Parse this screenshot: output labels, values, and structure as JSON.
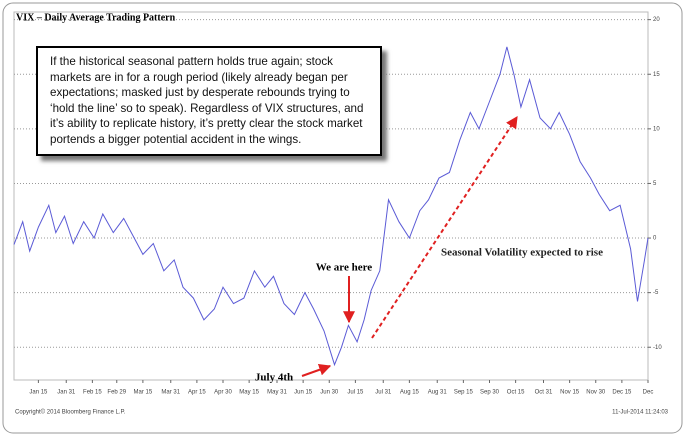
{
  "chart_data": {
    "type": "line",
    "title": "VIX – Daily Average Trading Pattern",
    "annotation_box": "If the historical seasonal pattern holds true again; stock markets are in for a rough period (likely already began per expectations; masked just by desperate rebounds trying to ‘hold the line’ so to speak). Regardless of VIX structures, and it’s ability to replicate history, it’s pretty clear the stock market portends a bigger potential accident in the wings.",
    "annotations": [
      "We are here",
      "July 4th",
      "Seasonal Volatility expected to rise"
    ],
    "footer_left": "Copyright© 2014 Bloomberg Finance L.P.",
    "footer_right": "11-Jul-2014 11:24:03",
    "yaxis_position": "right",
    "grid": true,
    "xlim": [
      1,
      365
    ],
    "ylim": [
      -13,
      20.7
    ],
    "yticks": [
      20,
      15,
      10,
      5,
      0,
      -5,
      -10
    ],
    "xticks": [
      {
        "value": 15,
        "label": "Jan 15"
      },
      {
        "value": 31,
        "label": "Jan 31"
      },
      {
        "value": 46,
        "label": "Feb 15"
      },
      {
        "value": 60,
        "label": "Feb 29"
      },
      {
        "value": 75,
        "label": "Mar 15"
      },
      {
        "value": 91,
        "label": "Mar 31"
      },
      {
        "value": 106,
        "label": "Apr 15"
      },
      {
        "value": 121,
        "label": "Apr 30"
      },
      {
        "value": 136,
        "label": "May 15"
      },
      {
        "value": 152,
        "label": "May 31"
      },
      {
        "value": 167,
        "label": "Jun 15"
      },
      {
        "value": 182,
        "label": "Jun 30"
      },
      {
        "value": 197,
        "label": "Jul 15"
      },
      {
        "value": 213,
        "label": "Jul 31"
      },
      {
        "value": 228,
        "label": "Aug 15"
      },
      {
        "value": 244,
        "label": "Aug 31"
      },
      {
        "value": 259,
        "label": "Sep 15"
      },
      {
        "value": 274,
        "label": "Sep 30"
      },
      {
        "value": 289,
        "label": "Oct 15"
      },
      {
        "value": 305,
        "label": "Oct 31"
      },
      {
        "value": 320,
        "label": "Nov 15"
      },
      {
        "value": 335,
        "label": "Nov 30"
      },
      {
        "value": 350,
        "label": "Dec 15"
      },
      {
        "value": 365,
        "label": "Dec"
      }
    ],
    "x": [
      1,
      6,
      10,
      15,
      21,
      25,
      30,
      35,
      41,
      47,
      52,
      58,
      64,
      70,
      75,
      81,
      87,
      93,
      98,
      104,
      110,
      116,
      121,
      127,
      133,
      139,
      145,
      150,
      156,
      162,
      168,
      173,
      179,
      185,
      189,
      193,
      198,
      202,
      206,
      211,
      216,
      222,
      228,
      234,
      239,
      245,
      251,
      257,
      263,
      268,
      274,
      280,
      284,
      288,
      292,
      297,
      303,
      309,
      314,
      320,
      326,
      332,
      337,
      343,
      349,
      355,
      359,
      363,
      365
    ],
    "series": [
      {
        "color": "#5b5bd6",
        "values": [
          -0.6,
          1.5,
          -1.2,
          1.0,
          3.0,
          0.5,
          2.0,
          -0.5,
          1.5,
          0.0,
          2.2,
          0.5,
          1.8,
          0.0,
          -1.5,
          -0.5,
          -3.0,
          -2.0,
          -4.5,
          -5.5,
          -7.5,
          -6.5,
          -4.5,
          -6.0,
          -5.5,
          -3.0,
          -4.5,
          -3.5,
          -6.0,
          -7.0,
          -5.0,
          -6.5,
          -8.5,
          -11.6,
          -10.0,
          -8.0,
          -9.5,
          -7.5,
          -4.8,
          -3.0,
          3.5,
          1.5,
          0.0,
          2.5,
          3.5,
          5.5,
          6.0,
          9.0,
          11.5,
          10.0,
          12.5,
          15.0,
          17.5,
          15.0,
          12.0,
          14.5,
          11.0,
          10.0,
          11.5,
          9.5,
          7.0,
          5.5,
          4.0,
          2.5,
          3.0,
          -1.0,
          -5.8,
          -2.0,
          0.0
        ]
      }
    ]
  }
}
